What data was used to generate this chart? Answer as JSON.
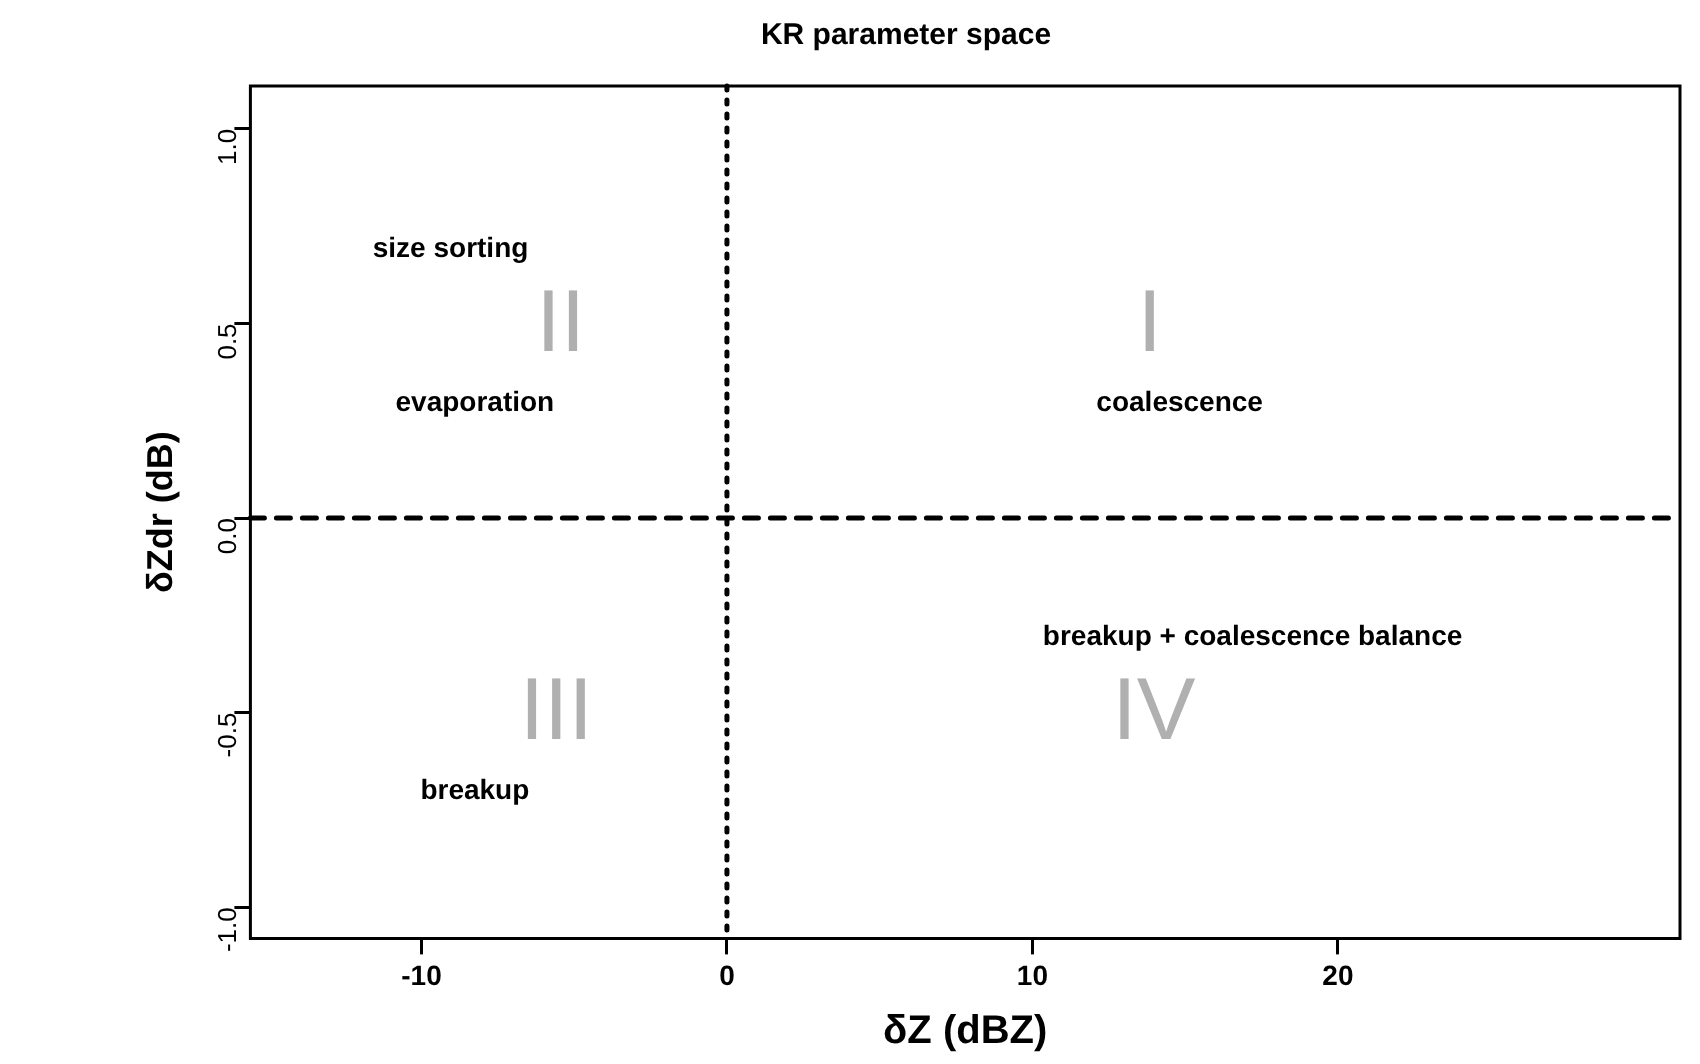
{
  "chart_data": {
    "type": "scatter",
    "title": "KR parameter space",
    "xlabel": "δZ (dBZ)",
    "ylabel": "δZdr (dB)",
    "xlim": [
      -15.6,
      31.2
    ],
    "ylim": [
      -1.08,
      1.11
    ],
    "xticks": [
      -10,
      0,
      10,
      20
    ],
    "yticks": [
      {
        "value": -1,
        "label": "-1.0"
      },
      {
        "value": -0.5,
        "label": "-0.5"
      },
      {
        "value": 0,
        "label": "0.0"
      },
      {
        "value": 0.5,
        "label": "0.5"
      },
      {
        "value": 1,
        "label": "1.0"
      }
    ],
    "ref_lines": [
      {
        "axis": "x",
        "value": 0,
        "line_style": "dotted",
        "color": "#000000"
      },
      {
        "axis": "y",
        "value": 0,
        "line_style": "dashed",
        "color": "#000000"
      }
    ],
    "annotations": [
      "size sorting",
      "II",
      "evaporation",
      "I",
      "coalescence",
      "breakup + coalescence balance",
      "III",
      "IV",
      "breakup"
    ]
  }
}
